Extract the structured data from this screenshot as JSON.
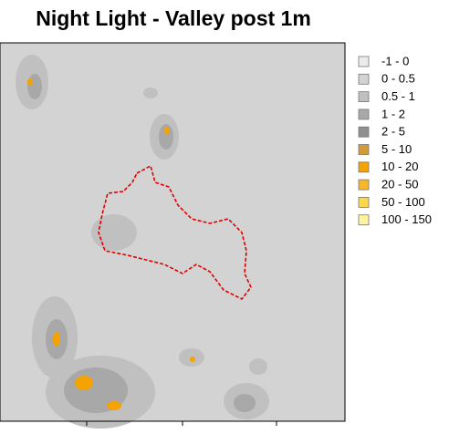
{
  "title": "Night Light - Valley post 1m",
  "legend": {
    "items": [
      {
        "label": "-1 - 0",
        "color": "#ebebeb"
      },
      {
        "label": "0 - 0.5",
        "color": "#d3d3d3"
      },
      {
        "label": "0.5 - 1",
        "color": "#c0c0c0"
      },
      {
        "label": "1 - 2",
        "color": "#a8a8a8"
      },
      {
        "label": "2 - 5",
        "color": "#8f8f8f"
      },
      {
        "label": "5 - 10",
        "color": "#d39a3a"
      },
      {
        "label": "10 - 20",
        "color": "#f4a300"
      },
      {
        "label": "20 - 50",
        "color": "#f6b82a"
      },
      {
        "label": "50 - 100",
        "color": "#fdd64a"
      },
      {
        "label": "100 - 150",
        "color": "#fff3a0"
      }
    ]
  }
}
